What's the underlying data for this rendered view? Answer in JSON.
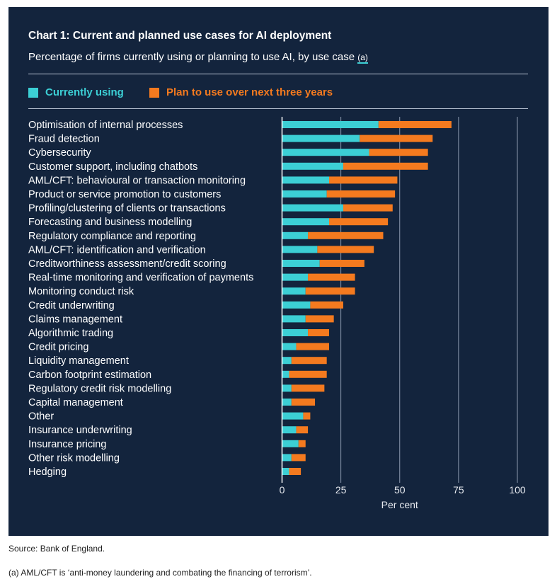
{
  "colors": {
    "background": "#13243d",
    "current": "#3ccfd5",
    "plan": "#f47a1f"
  },
  "chart_data": {
    "type": "bar",
    "orientation": "horizontal",
    "stacked": true,
    "title": "Chart 1: Current and planned use cases for AI deployment",
    "subtitle": "Percentage of firms currently using or planning to use AI, by use case",
    "subtitle_footnote": "(a)",
    "xlabel": "Per cent",
    "xlim": [
      0,
      100
    ],
    "xticks": [
      "0",
      "25",
      "50",
      "75",
      "100"
    ],
    "grid": true,
    "legend_position": "top",
    "categories": [
      "Optimisation of internal processes",
      "Fraud detection",
      "Cybersecurity",
      "Customer support, including chatbots",
      "AML/CFT: behavioural or transaction monitoring",
      "Product or service promotion to customers",
      "Profiling/clustering of clients or transactions",
      "Forecasting and business modelling",
      "Regulatory compliance and reporting",
      "AML/CFT: identification and verification",
      "Creditworthiness assessment/credit scoring",
      "Real-time monitoring and verification of payments",
      "Monitoring conduct risk",
      "Credit underwriting",
      "Claims management",
      "Algorithmic trading",
      "Credit pricing",
      "Liquidity management",
      "Carbon footprint estimation",
      "Regulatory credit risk modelling",
      "Capital management",
      "Other",
      "Insurance underwriting",
      "Insurance pricing",
      "Other risk modelling",
      "Hedging"
    ],
    "series": [
      {
        "name": "Currently using",
        "values": [
          41,
          33,
          37,
          26,
          20,
          19,
          26,
          20,
          11,
          15,
          16,
          11,
          10,
          12,
          10,
          11,
          6,
          4,
          3,
          4,
          4,
          9,
          6,
          7,
          4,
          3
        ]
      },
      {
        "name": "Plan to use over next three years",
        "values": [
          31,
          31,
          25,
          36,
          29,
          29,
          21,
          25,
          32,
          24,
          19,
          20,
          21,
          14,
          12,
          9,
          14,
          15,
          16,
          14,
          10,
          3,
          5,
          3,
          6,
          5
        ]
      }
    ]
  },
  "footer": {
    "source": "Source: Bank of England.",
    "note": "(a) AML/CFT is ‘anti-money laundering and combating the financing of terrorism’."
  }
}
